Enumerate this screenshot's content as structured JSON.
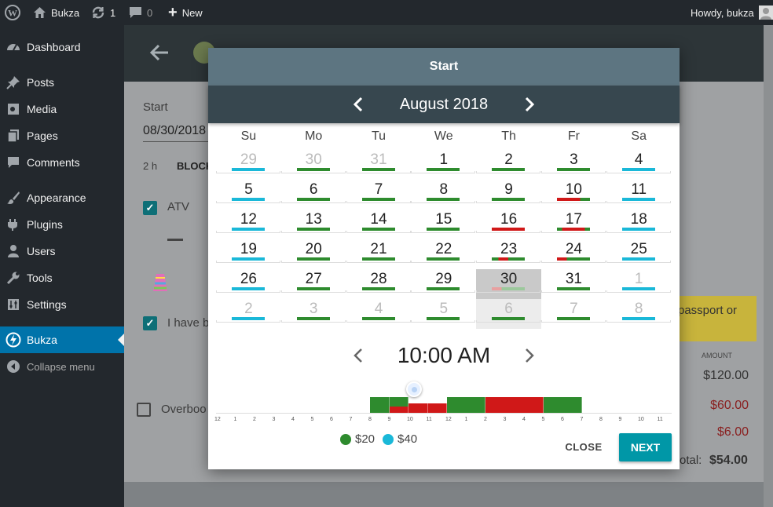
{
  "admin_bar": {
    "site_name": "Bukza",
    "updates_count": "1",
    "comments_count": "0",
    "new_label": "New",
    "greeting": "Howdy, bukza"
  },
  "menu": {
    "items": [
      {
        "label": "Dashboard",
        "icon": "dashboard-icon"
      },
      {
        "label": "Posts",
        "icon": "pin-icon"
      },
      {
        "label": "Media",
        "icon": "media-icon"
      },
      {
        "label": "Pages",
        "icon": "pages-icon"
      },
      {
        "label": "Comments",
        "icon": "comment-icon"
      },
      {
        "label": "Appearance",
        "icon": "brush-icon"
      },
      {
        "label": "Plugins",
        "icon": "plugin-icon"
      },
      {
        "label": "Users",
        "icon": "users-icon"
      },
      {
        "label": "Tools",
        "icon": "wrench-icon"
      },
      {
        "label": "Settings",
        "icon": "settings-icon"
      },
      {
        "label": "Bukza",
        "icon": "bukza-icon"
      },
      {
        "label": "Collapse menu",
        "icon": "collapse-icon"
      }
    ]
  },
  "form": {
    "start_label": "Start",
    "start_value": "08/30/2018",
    "duration": "2 h",
    "block_label": "BLOCK",
    "atv_label": "ATV",
    "agree_label": "I have b",
    "overbook_label": "Overboo",
    "notice_text": "passport or",
    "amount_header": "AMOUNT",
    "amounts": [
      "$120.00",
      "$60.00",
      "$6.00"
    ],
    "total_label": "otal:",
    "total_value": "$54.00"
  },
  "modal": {
    "title": "Start",
    "month": "August 2018",
    "weekdays": [
      "Su",
      "Mo",
      "Tu",
      "We",
      "Th",
      "Fr",
      "Sa"
    ],
    "weeks": [
      [
        "29",
        "30",
        "31",
        "1",
        "2",
        "3",
        "4"
      ],
      [
        "5",
        "6",
        "7",
        "8",
        "9",
        "10",
        "11"
      ],
      [
        "12",
        "13",
        "14",
        "15",
        "16",
        "17",
        "18"
      ],
      [
        "19",
        "20",
        "21",
        "22",
        "23",
        "24",
        "25"
      ],
      [
        "26",
        "27",
        "28",
        "29",
        "30",
        "31",
        "1"
      ],
      [
        "2",
        "3",
        "4",
        "5",
        "6",
        "7",
        "8"
      ]
    ],
    "time": "10:00 AM",
    "hour_ticks": [
      "12",
      "1",
      "2",
      "3",
      "4",
      "5",
      "6",
      "7",
      "8",
      "9",
      "10",
      "11",
      "12",
      "1",
      "2",
      "3",
      "4",
      "5",
      "6",
      "7",
      "8",
      "9",
      "10",
      "11"
    ],
    "legend": [
      {
        "label": "$20",
        "color": "#2e8b2e"
      },
      {
        "label": "$40",
        "color": "#1ab8d8"
      }
    ],
    "close_label": "CLOSE",
    "next_label": "NEXT"
  },
  "colors": {
    "green": "#2e8b2e",
    "cyan": "#1ab8d8",
    "red": "#d01818",
    "accent": "#0073aa",
    "next_button": "#0097a7"
  }
}
